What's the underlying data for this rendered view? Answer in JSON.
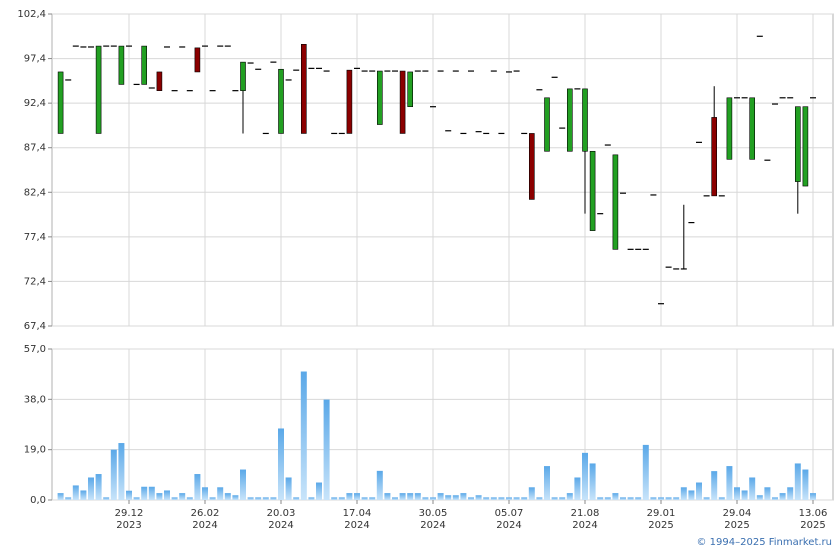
{
  "chart_data": [
    {
      "type": "candlestick",
      "up_color": "#22a022",
      "down_color": "#8b0000",
      "flat_color": "#000000",
      "grid": true,
      "ylim": [
        67.4,
        102.4
      ],
      "yticks": [
        {
          "value": 67.4,
          "label": "67,4"
        },
        {
          "value": 72.4,
          "label": "72,4"
        },
        {
          "value": 77.4,
          "label": "77,4"
        },
        {
          "value": 82.4,
          "label": "82,4"
        },
        {
          "value": 87.4,
          "label": "87,4"
        },
        {
          "value": 92.4,
          "label": "92,4"
        },
        {
          "value": 97.4,
          "label": "97,4"
        },
        {
          "value": 102.4,
          "label": "102,4"
        }
      ],
      "open": [
        89.0,
        95.0,
        98.8,
        98.7,
        98.7,
        89.0,
        98.8,
        98.8,
        94.5,
        98.8,
        94.5,
        94.5,
        94.1,
        95.9,
        98.7,
        93.8,
        98.7,
        93.8,
        98.6,
        98.8,
        93.8,
        98.8,
        98.8,
        93.8,
        93.8,
        96.9,
        96.2,
        89.0,
        97.0,
        89.0,
        95.0,
        96.1,
        99.0,
        96.3,
        96.3,
        96.0,
        89.0,
        89.0,
        96.1,
        96.3,
        96.0,
        96.0,
        90.0,
        96.0,
        96.0,
        96.0,
        92.0,
        96.0,
        96.0,
        92.0,
        96.0,
        89.3,
        96.0,
        89.0,
        96.0,
        89.2,
        89.0,
        96.0,
        89.0,
        95.9,
        96.0,
        89.0,
        89.0,
        93.9,
        87.0,
        95.3,
        89.6,
        87.0,
        94.0,
        87.0,
        78.1,
        80.0,
        87.7,
        76.0,
        82.3,
        76.0,
        76.0,
        76.0,
        82.1,
        69.9,
        74.0,
        73.8,
        73.8,
        79.0,
        88.0,
        82.0,
        90.8,
        82.0,
        86.1,
        93.0,
        93.0,
        86.1,
        99.9,
        86.0,
        92.3,
        93.0,
        93.0,
        83.6,
        83.1,
        93.0
      ],
      "high": [
        95.9,
        95.0,
        98.8,
        98.7,
        98.7,
        98.8,
        98.8,
        98.8,
        98.8,
        98.8,
        94.5,
        98.8,
        94.1,
        95.9,
        98.7,
        93.8,
        98.7,
        93.8,
        98.6,
        98.8,
        93.8,
        98.8,
        98.8,
        93.8,
        97.0,
        96.9,
        96.2,
        89.0,
        97.0,
        96.2,
        95.0,
        96.1,
        99.0,
        96.3,
        96.3,
        96.0,
        89.0,
        89.0,
        96.1,
        96.3,
        96.0,
        96.0,
        96.0,
        96.0,
        96.0,
        96.0,
        95.9,
        96.0,
        96.0,
        92.0,
        96.0,
        89.3,
        96.0,
        89.0,
        96.0,
        89.2,
        89.0,
        96.0,
        89.0,
        95.9,
        96.0,
        89.0,
        89.0,
        93.9,
        93.0,
        95.3,
        89.6,
        94.0,
        94.0,
        94.0,
        87.0,
        80.0,
        87.7,
        86.6,
        82.3,
        76.0,
        76.0,
        76.0,
        82.1,
        69.9,
        74.0,
        73.8,
        81.0,
        79.0,
        88.0,
        82.0,
        94.3,
        82.0,
        93.0,
        93.0,
        93.0,
        93.0,
        99.9,
        86.0,
        92.3,
        93.0,
        93.0,
        92.0,
        92.0,
        93.0
      ],
      "low": [
        89.0,
        95.0,
        98.8,
        98.7,
        98.7,
        89.0,
        98.8,
        98.8,
        94.5,
        98.8,
        94.5,
        94.5,
        94.1,
        93.8,
        98.7,
        93.8,
        98.7,
        93.8,
        95.9,
        98.8,
        93.8,
        98.8,
        98.8,
        93.8,
        89.0,
        96.9,
        96.2,
        89.0,
        97.0,
        89.0,
        95.0,
        96.1,
        89.0,
        96.3,
        96.3,
        96.0,
        89.0,
        89.0,
        89.0,
        96.3,
        96.0,
        96.0,
        90.0,
        96.0,
        96.0,
        89.0,
        92.0,
        96.0,
        96.0,
        92.0,
        96.0,
        89.3,
        96.0,
        89.0,
        96.0,
        89.2,
        89.0,
        96.0,
        89.0,
        95.9,
        96.0,
        89.0,
        81.6,
        93.9,
        87.0,
        95.3,
        89.6,
        87.0,
        94.0,
        80.0,
        78.1,
        80.0,
        87.7,
        76.0,
        82.3,
        76.0,
        76.0,
        76.0,
        82.1,
        69.9,
        74.0,
        73.8,
        73.8,
        79.0,
        88.0,
        82.0,
        82.0,
        82.0,
        86.1,
        93.0,
        93.0,
        86.1,
        99.9,
        86.0,
        92.3,
        93.0,
        93.0,
        80.0,
        83.1,
        93.0
      ],
      "close": [
        95.9,
        95.0,
        98.8,
        98.7,
        98.7,
        98.8,
        98.8,
        98.8,
        98.8,
        98.8,
        94.5,
        98.8,
        94.1,
        93.8,
        98.7,
        93.8,
        98.7,
        93.8,
        95.9,
        98.8,
        93.8,
        98.8,
        98.8,
        93.8,
        97.0,
        96.9,
        96.2,
        89.0,
        97.0,
        96.2,
        95.0,
        96.1,
        89.0,
        96.3,
        96.3,
        96.0,
        89.0,
        89.0,
        89.0,
        96.3,
        96.0,
        96.0,
        96.0,
        96.0,
        96.0,
        89.0,
        95.9,
        96.0,
        96.0,
        92.0,
        96.0,
        89.3,
        96.0,
        89.0,
        96.0,
        89.2,
        89.0,
        96.0,
        89.0,
        95.9,
        96.0,
        89.0,
        81.6,
        93.9,
        93.0,
        95.3,
        89.6,
        94.0,
        94.0,
        94.0,
        87.0,
        80.0,
        87.7,
        86.6,
        82.3,
        76.0,
        76.0,
        76.0,
        82.1,
        69.9,
        74.0,
        73.8,
        73.8,
        79.0,
        88.0,
        82.0,
        82.0,
        82.0,
        93.0,
        93.0,
        93.0,
        93.0,
        99.9,
        86.0,
        92.3,
        93.0,
        93.0,
        92.0,
        92.0,
        93.0
      ]
    },
    {
      "type": "bar",
      "color": "#7dbcee",
      "grid": true,
      "ylim": [
        0,
        57
      ],
      "yticks": [
        {
          "value": 0,
          "label": "0,0"
        },
        {
          "value": 19,
          "label": "19,0"
        },
        {
          "value": 38,
          "label": "38,0"
        },
        {
          "value": 57,
          "label": "57,0"
        }
      ],
      "categories": [
        null,
        null,
        null,
        null,
        null,
        null,
        null,
        null,
        null,
        [
          "29.12",
          "2023"
        ],
        null,
        null,
        null,
        null,
        null,
        null,
        null,
        null,
        null,
        [
          "26.02",
          "2024"
        ],
        null,
        null,
        null,
        null,
        null,
        null,
        null,
        null,
        null,
        [
          "20.03",
          "2024"
        ],
        null,
        null,
        null,
        null,
        null,
        null,
        null,
        null,
        null,
        [
          "17.04",
          "2024"
        ],
        null,
        null,
        null,
        null,
        null,
        null,
        null,
        null,
        null,
        [
          "30.05",
          "2024"
        ],
        null,
        null,
        null,
        null,
        null,
        null,
        null,
        null,
        null,
        [
          "05.07",
          "2024"
        ],
        null,
        null,
        null,
        null,
        null,
        null,
        null,
        null,
        null,
        [
          "21.08",
          "2024"
        ],
        null,
        null,
        null,
        null,
        null,
        null,
        null,
        null,
        null,
        [
          "29.01",
          "2025"
        ],
        null,
        null,
        null,
        null,
        null,
        null,
        null,
        null,
        null,
        [
          "29.04",
          "2025"
        ],
        null,
        null,
        null,
        null,
        null,
        null,
        null,
        null,
        null,
        [
          "13.06",
          "2025"
        ]
      ],
      "values": [
        2.6,
        1.0,
        5.5,
        3.6,
        8.5,
        9.8,
        1.0,
        19.0,
        21.5,
        3.5,
        1.0,
        5.0,
        5.0,
        2.6,
        3.6,
        1.0,
        2.6,
        1.0,
        9.8,
        4.8,
        1.0,
        4.8,
        2.6,
        1.8,
        11.5,
        1.0,
        1.0,
        1.0,
        1.0,
        27.0,
        8.5,
        1.0,
        48.5,
        1.0,
        6.6,
        37.9,
        1.0,
        1.0,
        2.6,
        2.6,
        1.0,
        1.0,
        11.0,
        2.6,
        1.0,
        2.6,
        2.6,
        2.6,
        1.0,
        1.0,
        2.6,
        1.8,
        1.8,
        2.6,
        1.0,
        1.8,
        1.0,
        1.0,
        1.0,
        1.0,
        1.0,
        1.0,
        4.8,
        1.0,
        12.8,
        1.0,
        1.0,
        2.6,
        8.5,
        17.8,
        13.8,
        1.0,
        1.0,
        2.6,
        1.0,
        1.0,
        1.0,
        20.8,
        1.0,
        1.0,
        1.0,
        1.0,
        4.8,
        3.6,
        6.6,
        1.0,
        10.9,
        1.0,
        12.8,
        4.8,
        3.6,
        8.5,
        1.8,
        4.8,
        1.0,
        2.6,
        4.8,
        13.8,
        11.5,
        2.6
      ]
    }
  ],
  "footer": "© 1994–2025 Finmarket.ru"
}
